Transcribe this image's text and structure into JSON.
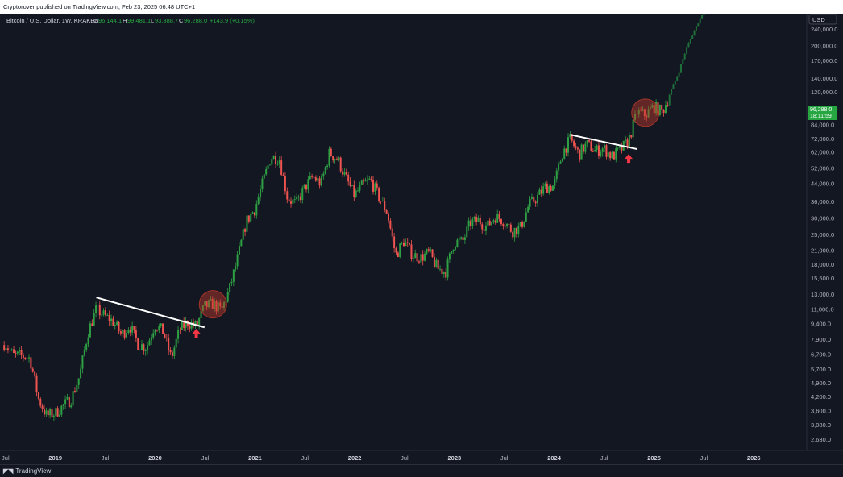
{
  "header": {
    "published_text": "Cryptorover published on TradingView.com, Feb 23, 2025 06:48 UTC+1"
  },
  "footer": {
    "brand": "TradingView",
    "logo_icon": "tradingview-logo-icon"
  },
  "colors": {
    "background": "#131722",
    "up": "#26a69a",
    "up_bright": "#2ea043",
    "down": "#ef5350",
    "text": "#b2b5be",
    "trendline": "#ffffff",
    "highlight": "#c0392b",
    "arrow": "#f23645",
    "price_tag": "#26a641"
  },
  "chart_data": {
    "type": "candlestick",
    "symbol_label": "Bitcoin / U.S. Dollar, 1W, KRAKEN",
    "ohlc": {
      "o_label": "O",
      "o_value": "96,144.1",
      "h_label": "H",
      "h_value": "99,481.1",
      "l_label": "L",
      "l_value": "93,388.7",
      "c_label": "C",
      "c_value": "96,288.0",
      "change": "+143.9 (+0.15%)"
    },
    "y_scale": "log",
    "currency_label": "USD",
    "current_price": {
      "value": 96288.0,
      "label": "96,288.0",
      "countdown": "18:11:59"
    },
    "y_ticks": [
      {
        "value": 240000,
        "label": "240,000.0"
      },
      {
        "value": 200000,
        "label": "200,000.0"
      },
      {
        "value": 170000,
        "label": "170,000.0"
      },
      {
        "value": 140000,
        "label": "140,000.0"
      },
      {
        "value": 120000,
        "label": "120,000.0"
      },
      {
        "value": 100000,
        "label": "100,000.0"
      },
      {
        "value": 84000,
        "label": "84,000.0"
      },
      {
        "value": 72000,
        "label": "72,000.0"
      },
      {
        "value": 62000,
        "label": "62,000.0"
      },
      {
        "value": 52000,
        "label": "52,000.0"
      },
      {
        "value": 44000,
        "label": "44,000.0"
      },
      {
        "value": 36000,
        "label": "36,000.0"
      },
      {
        "value": 30000,
        "label": "30,000.0"
      },
      {
        "value": 25000,
        "label": "25,000.0"
      },
      {
        "value": 21000,
        "label": "21,000.0"
      },
      {
        "value": 18000,
        "label": "18,000.0"
      },
      {
        "value": 15500,
        "label": "15,500.0"
      },
      {
        "value": 13000,
        "label": "13,000.0"
      },
      {
        "value": 11000,
        "label": "11,000.0"
      },
      {
        "value": 9400,
        "label": "9,400.0"
      },
      {
        "value": 7900,
        "label": "7,900.0"
      },
      {
        "value": 6700,
        "label": "6,700.0"
      },
      {
        "value": 5700,
        "label": "5,700.0"
      },
      {
        "value": 4900,
        "label": "4,900.0"
      },
      {
        "value": 4200,
        "label": "4,200.0"
      },
      {
        "value": 3600,
        "label": "3,600.0"
      },
      {
        "value": 3080,
        "label": "3,080.0"
      },
      {
        "value": 2630,
        "label": "2,630.0"
      }
    ],
    "x_ticks": [
      {
        "label": "Jul",
        "date": "2018-07",
        "bold": false
      },
      {
        "label": "2019",
        "date": "2019-01",
        "bold": true
      },
      {
        "label": "Jul",
        "date": "2019-07",
        "bold": false
      },
      {
        "label": "2020",
        "date": "2020-01",
        "bold": true
      },
      {
        "label": "Jul",
        "date": "2020-07",
        "bold": false
      },
      {
        "label": "2021",
        "date": "2021-01",
        "bold": true
      },
      {
        "label": "Jul",
        "date": "2021-07",
        "bold": false
      },
      {
        "label": "2022",
        "date": "2022-01",
        "bold": true
      },
      {
        "label": "Jul",
        "date": "2022-07",
        "bold": false
      },
      {
        "label": "2023",
        "date": "2023-01",
        "bold": true
      },
      {
        "label": "Jul",
        "date": "2023-07",
        "bold": false
      },
      {
        "label": "2024",
        "date": "2024-01",
        "bold": true
      },
      {
        "label": "Jul",
        "date": "2024-07",
        "bold": false
      },
      {
        "label": "2025",
        "date": "2025-01",
        "bold": true
      },
      {
        "label": "Jul",
        "date": "2025-07",
        "bold": false
      },
      {
        "label": "2026",
        "date": "2026-01",
        "bold": true
      }
    ],
    "price_path": [
      [
        "2018-06",
        6700
      ],
      [
        "2018-07",
        7600
      ],
      [
        "2018-08",
        6600
      ],
      [
        "2018-09",
        6600
      ],
      [
        "2018-10",
        6400
      ],
      [
        "2018-11",
        4100
      ],
      [
        "2018-12",
        3400
      ],
      [
        "2019-01",
        3500
      ],
      [
        "2019-02",
        3800
      ],
      [
        "2019-03",
        4100
      ],
      [
        "2019-04",
        5300
      ],
      [
        "2019-05",
        8500
      ],
      [
        "2019-06",
        11000
      ],
      [
        "2019-07",
        10200
      ],
      [
        "2019-08",
        9600
      ],
      [
        "2019-09",
        8300
      ],
      [
        "2019-10",
        9200
      ],
      [
        "2019-11",
        7500
      ],
      [
        "2019-12",
        7200
      ],
      [
        "2020-01",
        9300
      ],
      [
        "2020-02",
        8600
      ],
      [
        "2020-03",
        6400
      ],
      [
        "2020-04",
        8800
      ],
      [
        "2020-05",
        9500
      ],
      [
        "2020-06",
        9100
      ],
      [
        "2020-07",
        11300
      ],
      [
        "2020-08",
        11700
      ],
      [
        "2020-09",
        10800
      ],
      [
        "2020-10",
        13800
      ],
      [
        "2020-11",
        19700
      ],
      [
        "2020-12",
        29000
      ],
      [
        "2021-01",
        33000
      ],
      [
        "2021-02",
        45000
      ],
      [
        "2021-03",
        58800
      ],
      [
        "2021-04",
        57700
      ],
      [
        "2021-05",
        37300
      ],
      [
        "2021-06",
        35000
      ],
      [
        "2021-07",
        41500
      ],
      [
        "2021-08",
        47100
      ],
      [
        "2021-09",
        43800
      ],
      [
        "2021-10",
        61300
      ],
      [
        "2021-11",
        57000
      ],
      [
        "2021-12",
        46300
      ],
      [
        "2022-01",
        38500
      ],
      [
        "2022-02",
        43200
      ],
      [
        "2022-03",
        45500
      ],
      [
        "2022-04",
        37700
      ],
      [
        "2022-05",
        31800
      ],
      [
        "2022-06",
        19900
      ],
      [
        "2022-07",
        23300
      ],
      [
        "2022-08",
        20000
      ],
      [
        "2022-09",
        19400
      ],
      [
        "2022-10",
        20500
      ],
      [
        "2022-11",
        17200
      ],
      [
        "2022-12",
        16600
      ],
      [
        "2023-01",
        23100
      ],
      [
        "2023-02",
        23100
      ],
      [
        "2023-03",
        28500
      ],
      [
        "2023-04",
        29200
      ],
      [
        "2023-05",
        27200
      ],
      [
        "2023-06",
        30500
      ],
      [
        "2023-07",
        29200
      ],
      [
        "2023-08",
        26000
      ],
      [
        "2023-09",
        27000
      ],
      [
        "2023-10",
        34500
      ],
      [
        "2023-11",
        37700
      ],
      [
        "2023-12",
        42300
      ],
      [
        "2024-01",
        42600
      ],
      [
        "2024-02",
        61200
      ],
      [
        "2024-03",
        71300
      ],
      [
        "2024-04",
        60700
      ],
      [
        "2024-05",
        67500
      ],
      [
        "2024-06",
        62700
      ],
      [
        "2024-07",
        64600
      ],
      [
        "2024-08",
        59000
      ],
      [
        "2024-09",
        63300
      ],
      [
        "2024-10",
        70300
      ],
      [
        "2024-11",
        96400
      ],
      [
        "2024-12",
        93400
      ],
      [
        "2025-01",
        102400
      ],
      [
        "2025-02",
        96300
      ],
      [
        "2025-03",
        118000
      ],
      [
        "2025-04",
        148000
      ],
      [
        "2025-05",
        195000
      ],
      [
        "2025-06",
        240000
      ],
      [
        "2025-07",
        290000
      ]
    ],
    "trendlines": [
      {
        "from": [
          "2019-06",
          12500
        ],
        "to": [
          "2020-07",
          9000
        ]
      },
      {
        "from": [
          "2024-03",
          75000
        ],
        "to": [
          "2024-11",
          64000
        ]
      }
    ],
    "highlights": [
      {
        "center": [
          "2020-08",
          11600
        ]
      },
      {
        "center": [
          "2024-12",
          95500
        ]
      }
    ],
    "arrows": [
      {
        "at": [
          "2020-06",
          8400
        ],
        "direction": "up"
      },
      {
        "at": [
          "2024-10",
          57500
        ],
        "direction": "up"
      }
    ]
  }
}
